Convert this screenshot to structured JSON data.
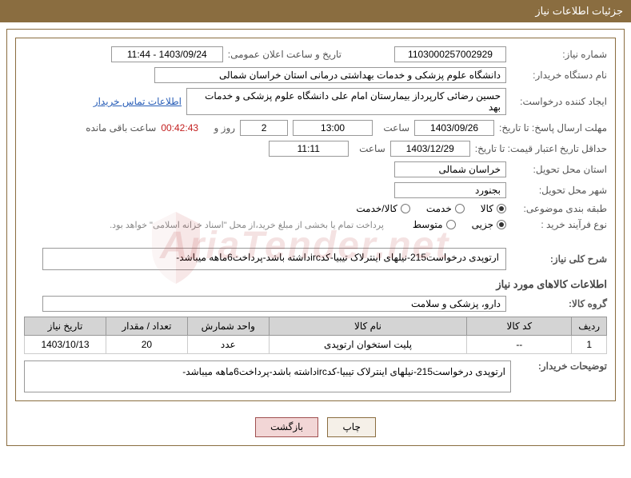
{
  "header": {
    "title": "جزئیات اطلاعات نیاز"
  },
  "fields": {
    "needNumber": {
      "label": "شماره نیاز:",
      "value": "1103000257002929"
    },
    "announceDate": {
      "label": "تاریخ و ساعت اعلان عمومی:",
      "value": "1403/09/24 - 11:44"
    },
    "buyerOrg": {
      "label": "نام دستگاه خریدار:",
      "value": "دانشگاه علوم پزشکی و خدمات بهداشتی درمانی استان خراسان شمالی"
    },
    "requester": {
      "label": "ایجاد کننده درخواست:",
      "value": "حسین رضائی کارپرداز بیمارستان امام علی دانشگاه علوم پزشکی و خدمات بهد"
    },
    "contactLink": "اطلاعات تماس خریدار",
    "responseDeadline": {
      "label": "مهلت ارسال پاسخ: تا تاریخ:",
      "date": "1403/09/26",
      "timeLabel": "ساعت",
      "time": "13:00",
      "days": "2",
      "daysLabel": "روز و",
      "countdown": "00:42:43",
      "remainLabel": "ساعت باقی مانده"
    },
    "priceValidity": {
      "label": "حداقل تاریخ اعتبار قیمت: تا تاریخ:",
      "date": "1403/12/29",
      "timeLabel": "ساعت",
      "time": "11:11"
    },
    "deliveryProvince": {
      "label": "استان محل تحویل:",
      "value": "خراسان شمالی"
    },
    "deliveryCity": {
      "label": "شهر محل تحویل:",
      "value": "بجنورد"
    },
    "classification": {
      "label": "طبقه بندی موضوعی:",
      "options": [
        {
          "label": "کالا",
          "checked": true
        },
        {
          "label": "خدمت",
          "checked": false
        },
        {
          "label": "کالا/خدمت",
          "checked": false
        }
      ]
    },
    "purchaseType": {
      "label": "نوع فرآیند خرید :",
      "options": [
        {
          "label": "جزیی",
          "checked": true
        },
        {
          "label": "متوسط",
          "checked": false
        }
      ],
      "note": "پرداخت تمام یا بخشی از مبلغ خرید،از محل \"اسناد خزانه اسلامی\" خواهد بود."
    },
    "generalDesc": {
      "label": "شرح کلی نیاز:",
      "value": "ارتوپدی درخواست215-نیلهای اینترلاک تیبیا-کدircداشته باشد-پرداخت6ماهه میباشد-"
    },
    "itemsSection": "اطلاعات کالاهای مورد نیاز",
    "productGroup": {
      "label": "گروه کالا:",
      "value": "دارو، پزشکی و سلامت"
    },
    "buyerNotes": {
      "label": "توضیحات خریدار:",
      "value": "ارتوپدی درخواست215-نیلهای اینترلاک تیبیا-کدircداشته باشد-پرداخت6ماهه میباشد-"
    }
  },
  "table": {
    "headers": [
      "ردیف",
      "کد کالا",
      "نام کالا",
      "واحد شمارش",
      "تعداد / مقدار",
      "تاریخ نیاز"
    ],
    "rows": [
      [
        "1",
        "--",
        "پلیت استخوان ارتوپدی",
        "عدد",
        "20",
        "1403/10/13"
      ]
    ],
    "colWidths": [
      "6%",
      "18%",
      "34%",
      "14%",
      "14%",
      "14%"
    ]
  },
  "buttons": {
    "print": "چاپ",
    "back": "بازگشت"
  },
  "watermark": "AriaTender.net",
  "colors": {
    "headerBg": "#8a6d40",
    "border": "#8a6d40",
    "tableHeader": "#d4d4d4",
    "link": "#2a5fb8",
    "countdown": "#c32020"
  }
}
